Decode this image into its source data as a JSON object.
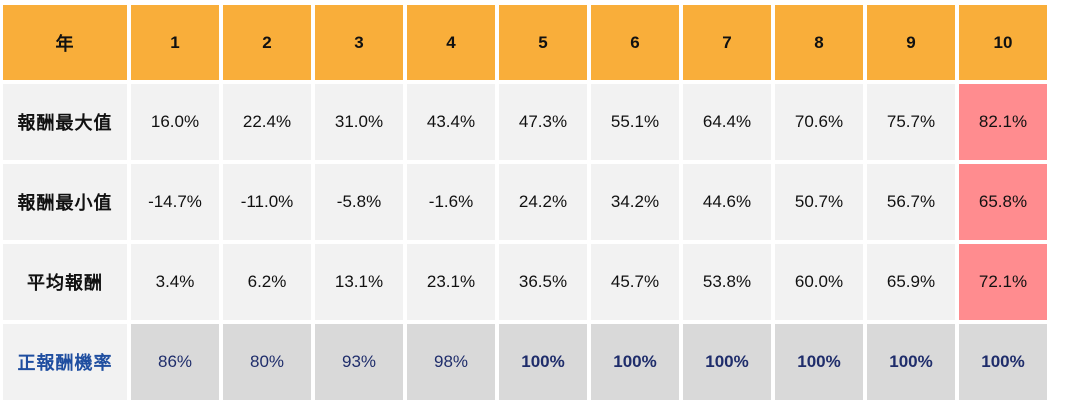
{
  "header": {
    "label": "年",
    "years": [
      "1",
      "2",
      "3",
      "4",
      "5",
      "6",
      "7",
      "8",
      "9",
      "10"
    ]
  },
  "rows": [
    {
      "label": "報酬最大值",
      "values": [
        "16.0%",
        "22.4%",
        "31.0%",
        "43.4%",
        "47.3%",
        "55.1%",
        "64.4%",
        "70.6%",
        "75.7%",
        "82.1%"
      ]
    },
    {
      "label": "報酬最小值",
      "values": [
        "-14.7%",
        "-11.0%",
        "-5.8%",
        "-1.6%",
        "24.2%",
        "34.2%",
        "44.6%",
        "50.7%",
        "56.7%",
        "65.8%"
      ]
    },
    {
      "label": "平均報酬",
      "values": [
        "3.4%",
        "6.2%",
        "13.1%",
        "23.1%",
        "36.5%",
        "45.7%",
        "53.8%",
        "60.0%",
        "65.9%",
        "72.1%"
      ]
    }
  ],
  "probability": {
    "label": "正報酬機率",
    "values": [
      "86%",
      "80%",
      "93%",
      "98%",
      "100%",
      "100%",
      "100%",
      "100%",
      "100%",
      "100%"
    ]
  },
  "colors": {
    "header": "#F9AE3A",
    "highlight": "#FF8C8F",
    "cell": "#F2F2F2",
    "prob_cell": "#D9D9D9",
    "prob_text": "#1F2D6B"
  }
}
